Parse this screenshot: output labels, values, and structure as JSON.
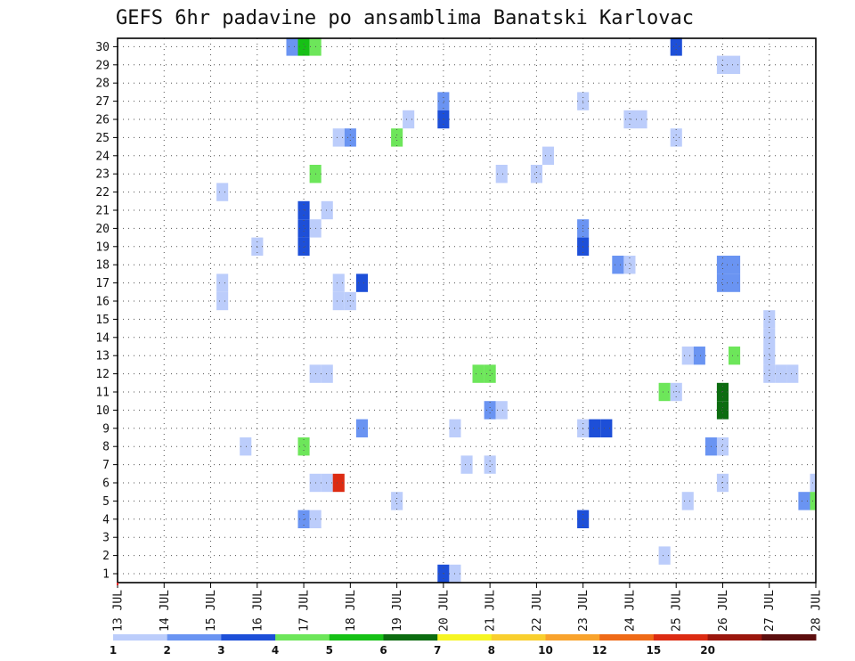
{
  "chart_data": {
    "type": "heatmap",
    "title": "GEFS 6hr padavine po ansamblima Banatski Karlovac",
    "x_tick_labels": [
      "13 JUL",
      "14 JUL",
      "15 JUL",
      "16 JUL",
      "17 JUL",
      "18 JUL",
      "19 JUL",
      "20 JUL",
      "21 JUL",
      "22 JUL",
      "23 JUL",
      "24 JUL",
      "25 JUL",
      "26 JUL",
      "27 JUL",
      "28 JUL"
    ],
    "xlim_days": [
      13,
      28
    ],
    "y_tick_labels": [
      "1",
      "2",
      "3",
      "4",
      "5",
      "6",
      "7",
      "8",
      "9",
      "10",
      "11",
      "12",
      "13",
      "14",
      "15",
      "16",
      "17",
      "18",
      "19",
      "20",
      "21",
      "22",
      "23",
      "24",
      "25",
      "26",
      "27",
      "28",
      "29",
      "30"
    ],
    "ylabel": "",
    "xlabel": "",
    "grid": true,
    "legend": "colorbar bottom",
    "colorbar": {
      "labels": [
        "1",
        "2",
        "3",
        "4",
        "5",
        "6",
        "7",
        "8",
        "10",
        "12",
        "15",
        "20"
      ],
      "colors": [
        "#bccdfb",
        "#6a94f2",
        "#1d4fd8",
        "#6de65a",
        "#16c116",
        "#0c6c10",
        "#f6f522",
        "#f9cf2e",
        "#f9a32c",
        "#ef6a17",
        "#dc2b12",
        "#9b160d",
        "#5c0e0e"
      ]
    },
    "cells": [
      {
        "d": 16.75,
        "m": 30,
        "c": 2
      },
      {
        "d": 17,
        "m": 30,
        "c": 5
      },
      {
        "d": 17.25,
        "m": 30,
        "c": 4
      },
      {
        "d": 25,
        "m": 30,
        "c": 3
      },
      {
        "d": 26,
        "m": 29,
        "c": 1
      },
      {
        "d": 26.25,
        "m": 29,
        "c": 1
      },
      {
        "d": 20,
        "m": 27,
        "c": 2
      },
      {
        "d": 23,
        "m": 27,
        "c": 1
      },
      {
        "d": 19.25,
        "m": 26,
        "c": 1
      },
      {
        "d": 20,
        "m": 26,
        "c": 3
      },
      {
        "d": 24,
        "m": 26,
        "c": 1
      },
      {
        "d": 24.25,
        "m": 26,
        "c": 1
      },
      {
        "d": 17.75,
        "m": 25,
        "c": 1
      },
      {
        "d": 18,
        "m": 25,
        "c": 2
      },
      {
        "d": 19,
        "m": 25,
        "c": 4
      },
      {
        "d": 25,
        "m": 25,
        "c": 1
      },
      {
        "d": 22.25,
        "m": 24,
        "c": 1
      },
      {
        "d": 17.25,
        "m": 23,
        "c": 4
      },
      {
        "d": 21.25,
        "m": 23,
        "c": 1
      },
      {
        "d": 22,
        "m": 23,
        "c": 1
      },
      {
        "d": 15.25,
        "m": 22,
        "c": 1
      },
      {
        "d": 17,
        "m": 21,
        "c": 3
      },
      {
        "d": 17.5,
        "m": 21,
        "c": 1
      },
      {
        "d": 17,
        "m": 20,
        "c": 3
      },
      {
        "d": 17.25,
        "m": 20,
        "c": 1
      },
      {
        "d": 23,
        "m": 20,
        "c": 2
      },
      {
        "d": 17,
        "m": 19,
        "c": 3
      },
      {
        "d": 16,
        "m": 19,
        "c": 1
      },
      {
        "d": 23,
        "m": 19,
        "c": 3
      },
      {
        "d": 23.75,
        "m": 18,
        "c": 2
      },
      {
        "d": 24,
        "m": 18,
        "c": 1
      },
      {
        "d": 26,
        "m": 18,
        "c": 2
      },
      {
        "d": 26.25,
        "m": 18,
        "c": 2
      },
      {
        "d": 15.25,
        "m": 17,
        "c": 1
      },
      {
        "d": 17.75,
        "m": 17,
        "c": 1
      },
      {
        "d": 18.25,
        "m": 17,
        "c": 3
      },
      {
        "d": 26,
        "m": 17,
        "c": 2
      },
      {
        "d": 26.25,
        "m": 17,
        "c": 2
      },
      {
        "d": 15.25,
        "m": 16,
        "c": 1
      },
      {
        "d": 17.75,
        "m": 16,
        "c": 1
      },
      {
        "d": 18,
        "m": 16,
        "c": 1
      },
      {
        "d": 27,
        "m": 15,
        "c": 1
      },
      {
        "d": 27,
        "m": 14,
        "c": 1
      },
      {
        "d": 25.25,
        "m": 13,
        "c": 1
      },
      {
        "d": 25.5,
        "m": 13,
        "c": 2
      },
      {
        "d": 26.25,
        "m": 13,
        "c": 4
      },
      {
        "d": 27,
        "m": 13,
        "c": 1
      },
      {
        "d": 17.25,
        "m": 12,
        "c": 1
      },
      {
        "d": 17.5,
        "m": 12,
        "c": 1
      },
      {
        "d": 20.75,
        "m": 12,
        "c": 4
      },
      {
        "d": 21,
        "m": 12,
        "c": 4
      },
      {
        "d": 27,
        "m": 12,
        "c": 1
      },
      {
        "d": 27.25,
        "m": 12,
        "c": 1
      },
      {
        "d": 27.5,
        "m": 12,
        "c": 1
      },
      {
        "d": 24.75,
        "m": 11,
        "c": 4
      },
      {
        "d": 25,
        "m": 11,
        "c": 1
      },
      {
        "d": 26,
        "m": 11,
        "c": 6
      },
      {
        "d": 21,
        "m": 10,
        "c": 2
      },
      {
        "d": 21.25,
        "m": 10,
        "c": 1
      },
      {
        "d": 26,
        "m": 10,
        "c": 6
      },
      {
        "d": 18.25,
        "m": 9,
        "c": 2
      },
      {
        "d": 20.25,
        "m": 9,
        "c": 1
      },
      {
        "d": 23,
        "m": 9,
        "c": 1
      },
      {
        "d": 23.25,
        "m": 9,
        "c": 3
      },
      {
        "d": 23.5,
        "m": 9,
        "c": 3
      },
      {
        "d": 15.75,
        "m": 8,
        "c": 1
      },
      {
        "d": 17,
        "m": 8,
        "c": 4
      },
      {
        "d": 25.75,
        "m": 8,
        "c": 2
      },
      {
        "d": 26,
        "m": 8,
        "c": 1
      },
      {
        "d": 20.5,
        "m": 7,
        "c": 1
      },
      {
        "d": 21,
        "m": 7,
        "c": 1
      },
      {
        "d": 17.25,
        "m": 6,
        "c": 1
      },
      {
        "d": 17.5,
        "m": 6,
        "c": 1
      },
      {
        "d": 17.75,
        "m": 6,
        "c": 11
      },
      {
        "d": 26,
        "m": 6,
        "c": 1
      },
      {
        "d": 28,
        "m": 6,
        "c": 1
      },
      {
        "d": 19,
        "m": 5,
        "c": 1
      },
      {
        "d": 25.25,
        "m": 5,
        "c": 1
      },
      {
        "d": 27.75,
        "m": 5,
        "c": 2
      },
      {
        "d": 28,
        "m": 5,
        "c": 4
      },
      {
        "d": 17,
        "m": 4,
        "c": 2
      },
      {
        "d": 17.25,
        "m": 4,
        "c": 1
      },
      {
        "d": 23,
        "m": 4,
        "c": 3
      },
      {
        "d": 24.75,
        "m": 2,
        "c": 1
      },
      {
        "d": 20,
        "m": 1,
        "c": 3
      },
      {
        "d": 20.25,
        "m": 1,
        "c": 1
      }
    ]
  }
}
